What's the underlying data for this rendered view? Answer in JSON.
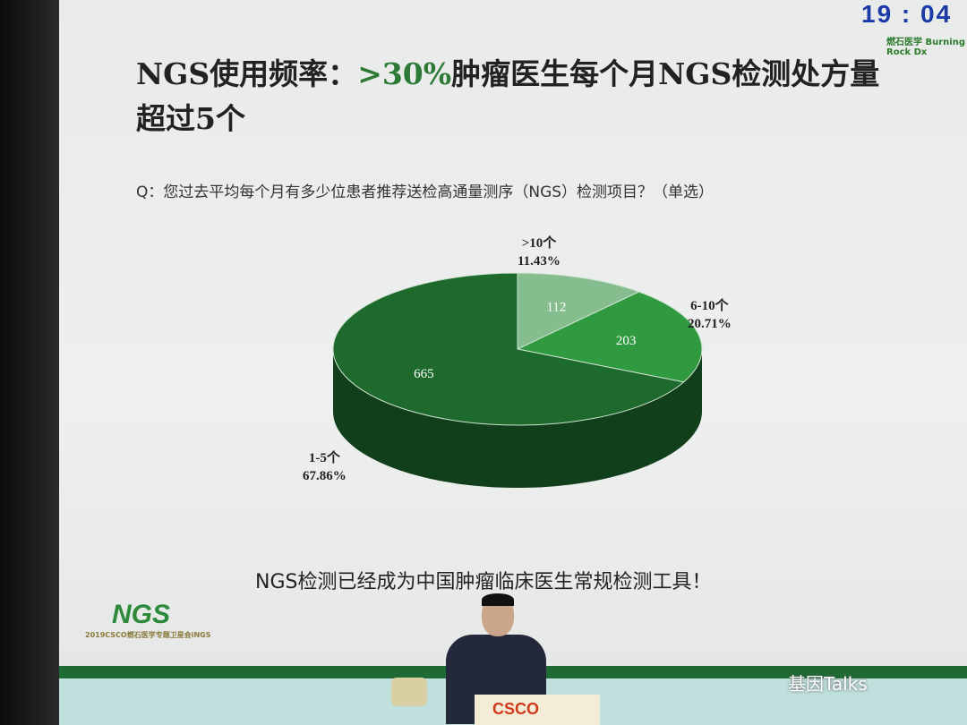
{
  "clock": "19 : 04",
  "brand": "燃石医学 Burning Rock Dx",
  "title": {
    "prefix": "NGS使用频率：",
    "highlight": ">30%",
    "suffix": "肿瘤医生每个月NGS检测处方量超过5个"
  },
  "question": "Q：您过去平均每个月有多少位患者推荐送检高通量测序（NGS）检测项目？（单选）",
  "conclusion": "NGS检测已经成为中国肿瘤临床医生常规检测工具！",
  "logo": {
    "text": "NGS",
    "subtitle": "2019CSCO燃石医学专题卫星会iNGS"
  },
  "podium": "CSCO",
  "watermark": "基因Talks",
  "chart_data": {
    "type": "pie",
    "style": "3d",
    "categories": [
      ">10个",
      "6-10个",
      "1-5个"
    ],
    "values": [
      112,
      203,
      665
    ],
    "percent_labels": [
      "11.43%",
      "20.71%",
      "67.86%"
    ],
    "colors": [
      "#86bd8f",
      "#2f9a40",
      "#1d6a2c"
    ],
    "side_color": "#123f1b"
  }
}
